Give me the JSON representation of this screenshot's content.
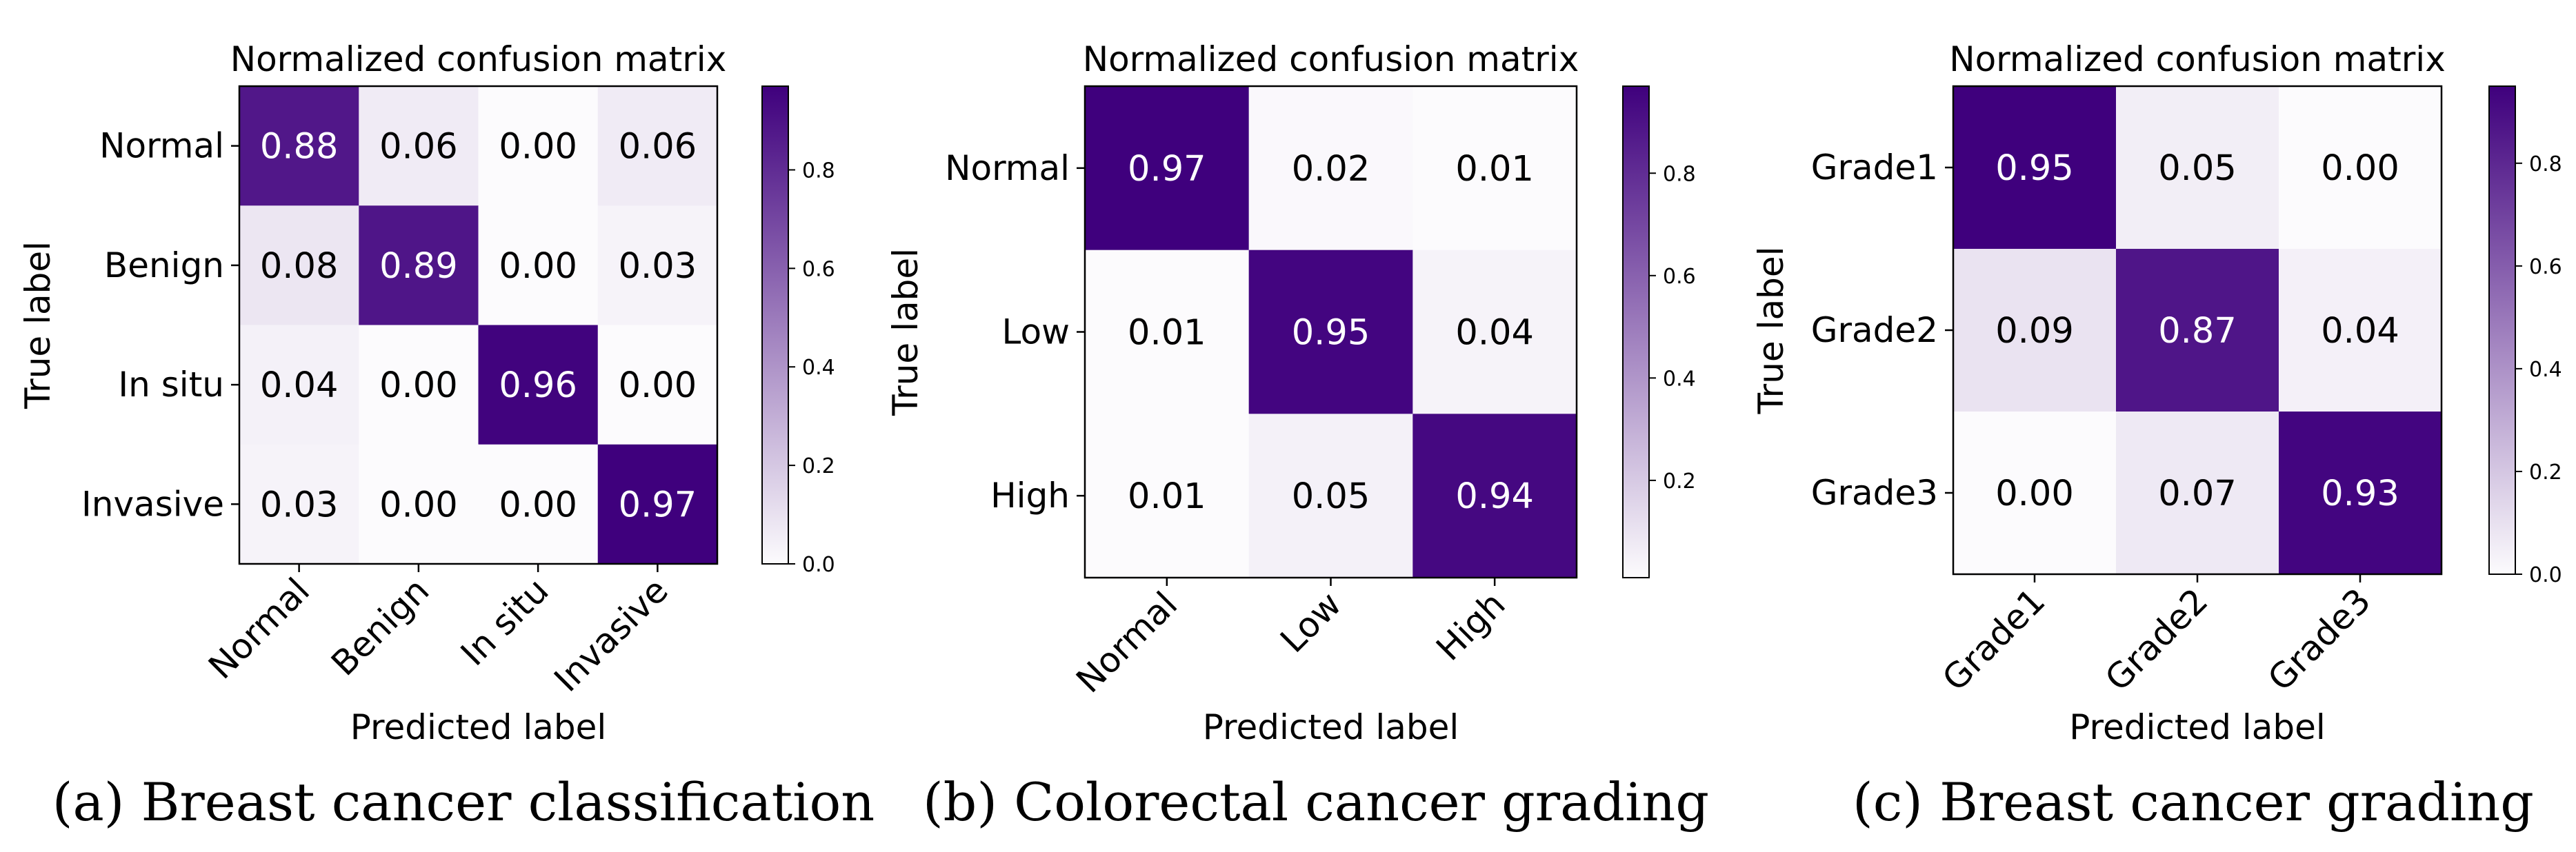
{
  "colors": {
    "max": "#3f007d",
    "min": "#fcfbfd",
    "light_text": "#ffffff",
    "dark_text": "#000000"
  },
  "chart_data": [
    {
      "type": "heatmap",
      "title": "Normalized confusion matrix",
      "xlabel": "Predicted label",
      "ylabel": "True label",
      "caption": "(a) Breast cancer classification",
      "row_labels": [
        "Normal",
        "Benign",
        "In situ",
        "Invasive"
      ],
      "col_labels": [
        "Normal",
        "Benign",
        "In situ",
        "Invasive"
      ],
      "values": [
        [
          0.88,
          0.06,
          0.0,
          0.06
        ],
        [
          0.08,
          0.89,
          0.0,
          0.03
        ],
        [
          0.04,
          0.0,
          0.96,
          0.0
        ],
        [
          0.03,
          0.0,
          0.0,
          0.97
        ]
      ],
      "cell_labels": [
        [
          "0.88",
          "0.06",
          "0.00",
          "0.06"
        ],
        [
          "0.08",
          "0.89",
          "0.00",
          "0.03"
        ],
        [
          "0.04",
          "0.00",
          "0.96",
          "0.00"
        ],
        [
          "0.03",
          "0.00",
          "0.00",
          "0.97"
        ]
      ],
      "colorbar": {
        "range": [
          0.0,
          0.97
        ],
        "ticks": [
          0.0,
          0.2,
          0.4,
          0.6,
          0.8
        ],
        "tick_labels": [
          "0.0",
          "0.2",
          "0.4",
          "0.6",
          "0.8"
        ]
      }
    },
    {
      "type": "heatmap",
      "title": "Normalized confusion matrix",
      "xlabel": "Predicted label",
      "ylabel": "True label",
      "caption": "(b) Colorectal cancer grading",
      "row_labels": [
        "Normal",
        "Low",
        "High"
      ],
      "col_labels": [
        "Normal",
        "Low",
        "High"
      ],
      "values": [
        [
          0.97,
          0.02,
          0.01
        ],
        [
          0.01,
          0.95,
          0.04
        ],
        [
          0.01,
          0.05,
          0.94
        ]
      ],
      "cell_labels": [
        [
          "0.97",
          "0.02",
          "0.01"
        ],
        [
          "0.01",
          "0.95",
          "0.04"
        ],
        [
          "0.01",
          "0.05",
          "0.94"
        ]
      ],
      "colorbar": {
        "range": [
          0.01,
          0.97
        ],
        "ticks": [
          0.2,
          0.4,
          0.6,
          0.8
        ],
        "tick_labels": [
          "0.2",
          "0.4",
          "0.6",
          "0.8"
        ]
      }
    },
    {
      "type": "heatmap",
      "title": "Normalized confusion matrix",
      "xlabel": "Predicted label",
      "ylabel": "True label",
      "caption": "(c) Breast cancer grading",
      "row_labels": [
        "Grade1",
        "Grade2",
        "Grade3"
      ],
      "col_labels": [
        "Grade1",
        "Grade2",
        "Grade3"
      ],
      "values": [
        [
          0.95,
          0.05,
          0.0
        ],
        [
          0.09,
          0.87,
          0.04
        ],
        [
          0.0,
          0.07,
          0.93
        ]
      ],
      "cell_labels": [
        [
          "0.95",
          "0.05",
          "0.00"
        ],
        [
          "0.09",
          "0.87",
          "0.04"
        ],
        [
          "0.00",
          "0.07",
          "0.93"
        ]
      ],
      "colorbar": {
        "range": [
          0.0,
          0.95
        ],
        "ticks": [
          0.0,
          0.2,
          0.4,
          0.6,
          0.8
        ],
        "tick_labels": [
          "0.0",
          "0.2",
          "0.4",
          "0.6",
          "0.8"
        ]
      }
    }
  ]
}
